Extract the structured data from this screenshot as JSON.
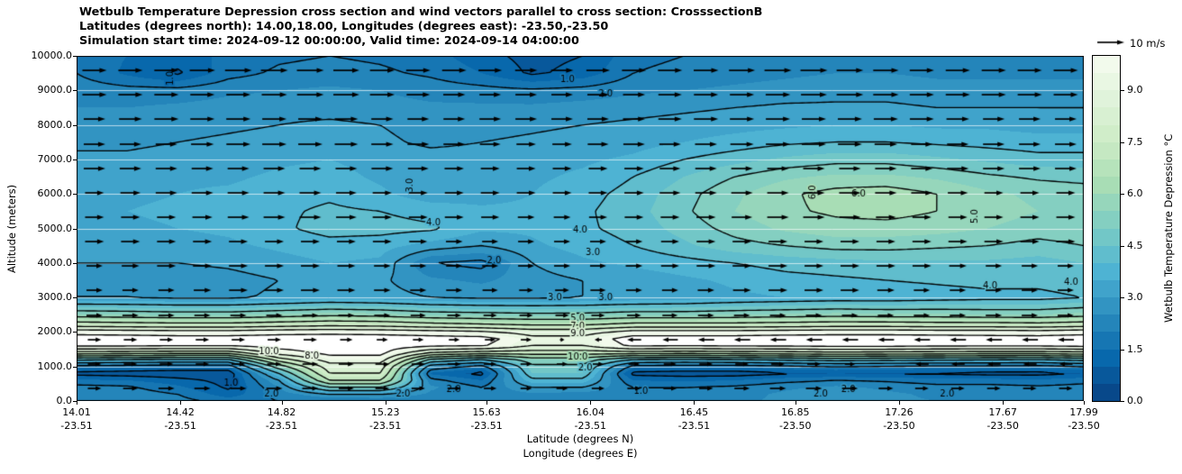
{
  "title": {
    "line1": "Wetbulb Temperature Depression cross section and wind vectors parallel to cross section: CrosssectionB",
    "line2": "Latitudes (degrees north): 14.00,18.00, Longitudes (degrees east): -23.50,-23.50",
    "line3": "Simulation start time: 2024-09-12 00:00:00, Valid time: 2024-09-14 04:00:00"
  },
  "y_axis": {
    "label": "Altitude (meters)",
    "ticks": [
      "0.0",
      "1000.0",
      "2000.0",
      "3000.0",
      "4000.0",
      "5000.0",
      "6000.0",
      "7000.0",
      "8000.0",
      "9000.0",
      "10000.0"
    ],
    "min": 0,
    "max": 10000
  },
  "x_axis": {
    "label_line1": "Latitude (degrees N)",
    "label_line2": "Longitude (degrees E)",
    "min": 14.01,
    "max": 17.99,
    "ticks": [
      {
        "lat": "14.01",
        "lon": "-23.51"
      },
      {
        "lat": "14.42",
        "lon": "-23.51"
      },
      {
        "lat": "14.82",
        "lon": "-23.51"
      },
      {
        "lat": "15.23",
        "lon": "-23.51"
      },
      {
        "lat": "15.63",
        "lon": "-23.51"
      },
      {
        "lat": "16.04",
        "lon": "-23.51"
      },
      {
        "lat": "16.45",
        "lon": "-23.51"
      },
      {
        "lat": "16.85",
        "lon": "-23.50"
      },
      {
        "lat": "17.26",
        "lon": "-23.50"
      },
      {
        "lat": "17.67",
        "lon": "-23.50"
      },
      {
        "lat": "17.99",
        "lon": "-23.50"
      }
    ]
  },
  "colorbar": {
    "label": "Wetbulb Temperature Depression °C",
    "ticks": [
      "0.0",
      "1.5",
      "3.0",
      "4.5",
      "6.0",
      "7.5",
      "9.0"
    ],
    "min": 0,
    "max": 10,
    "step": 0.5,
    "colors": [
      "#08488a",
      "#08589b",
      "#0868ac",
      "#1676b3",
      "#2485ba",
      "#3294c2",
      "#40a3cb",
      "#4eb3d3",
      "#60bdcd",
      "#72c7c7",
      "#84cfc1",
      "#96d6bb",
      "#a8ddb5",
      "#b6e3bb",
      "#c5e8c2",
      "#d0edc9",
      "#d8f0d2",
      "#e0f3db",
      "#e9f7e3",
      "#f2faec"
    ],
    "over_color": "#ffffff"
  },
  "quiver_key": {
    "label": "10 m/s",
    "speed_ms": 10
  },
  "chart_data": {
    "type": "heatmap",
    "title": "Wetbulb Temperature Depression cross section and wind vectors parallel to cross section: CrosssectionB",
    "xlabel": "Latitude (degrees N) / Longitude (degrees E)",
    "ylabel": "Altitude (meters)",
    "value_units": "degC wetbulb temperature depression",
    "x_lat": [
      14.01,
      14.21,
      14.41,
      14.61,
      14.81,
      15.01,
      15.21,
      15.41,
      15.61,
      15.81,
      16.01,
      16.21,
      16.41,
      16.61,
      16.81,
      17.01,
      17.21,
      17.41,
      17.61,
      17.81,
      17.99
    ],
    "y_alt": [
      0,
      200,
      400,
      600,
      800,
      1000,
      1200,
      1400,
      1600,
      1800,
      2000,
      2200,
      2500,
      3000,
      3500,
      4000,
      4500,
      5000,
      5500,
      6000,
      6500,
      7000,
      7500,
      8000,
      8500,
      9000,
      9500,
      10000
    ],
    "values": [
      [
        2.5,
        2.4,
        2.2,
        1.8,
        2.0,
        2.0,
        2.1,
        2.2,
        2.3,
        2.2,
        2.1,
        2.2,
        2.3,
        2.4,
        2.6,
        2.8,
        2.6,
        2.5,
        2.5,
        2.4,
        2.4
      ],
      [
        2.4,
        2.3,
        2.0,
        1.2,
        2.2,
        3.0,
        3.0,
        2.4,
        2.2,
        2.4,
        2.3,
        2.2,
        2.2,
        2.3,
        2.6,
        2.8,
        2.6,
        2.4,
        2.4,
        2.3,
        2.3
      ],
      [
        2.2,
        2.1,
        1.6,
        0.9,
        2.5,
        5.0,
        5.0,
        2.6,
        2.0,
        3.0,
        3.0,
        2.0,
        2.0,
        2.1,
        2.4,
        2.6,
        2.4,
        2.2,
        2.2,
        2.1,
        2.2
      ],
      [
        1.6,
        1.5,
        1.2,
        0.8,
        3.0,
        7.0,
        7.0,
        2.2,
        1.5,
        3.8,
        3.8,
        1.5,
        1.4,
        1.5,
        1.8,
        2.0,
        1.9,
        1.7,
        1.7,
        1.6,
        1.8
      ],
      [
        0.8,
        0.7,
        0.6,
        0.6,
        4.0,
        8.0,
        8.0,
        1.4,
        0.8,
        4.5,
        4.5,
        0.8,
        0.7,
        0.7,
        0.9,
        1.0,
        0.9,
        0.9,
        0.8,
        0.8,
        1.0
      ],
      [
        1.7,
        1.6,
        1.5,
        1.5,
        5.5,
        8.5,
        8.5,
        2.5,
        1.7,
        4.8,
        4.8,
        1.7,
        1.6,
        1.6,
        1.8,
        2.0,
        1.9,
        1.8,
        1.8,
        1.7,
        2.0
      ],
      [
        4.2,
        4.0,
        3.9,
        3.9,
        7.5,
        9.5,
        9.5,
        4.8,
        4.0,
        5.5,
        5.5,
        4.0,
        3.9,
        4.0,
        4.2,
        4.4,
        4.3,
        4.2,
        4.1,
        4.0,
        4.3
      ],
      [
        7.6,
        7.5,
        7.4,
        7.4,
        9.5,
        10.3,
        10.3,
        8.0,
        7.5,
        7.5,
        7.5,
        7.5,
        7.4,
        7.5,
        7.6,
        7.8,
        7.7,
        7.6,
        7.5,
        7.5,
        7.7
      ],
      [
        10.2,
        10.2,
        10.1,
        10.1,
        10.4,
        10.5,
        10.5,
        10.2,
        10.1,
        9.0,
        9.0,
        10.2,
        10.1,
        10.2,
        10.2,
        10.3,
        10.3,
        10.2,
        10.2,
        10.2,
        10.3
      ],
      [
        10.6,
        10.6,
        10.5,
        10.5,
        10.6,
        10.6,
        10.6,
        10.5,
        10.4,
        9.3,
        9.3,
        10.5,
        10.5,
        10.5,
        10.6,
        10.6,
        10.6,
        10.6,
        10.5,
        10.5,
        10.6
      ],
      [
        9.6,
        9.5,
        9.4,
        9.4,
        9.6,
        9.7,
        9.6,
        9.4,
        9.2,
        8.6,
        8.6,
        9.4,
        9.4,
        9.4,
        9.5,
        9.6,
        9.6,
        9.5,
        9.5,
        9.4,
        9.6
      ],
      [
        7.6,
        7.5,
        7.4,
        7.4,
        7.6,
        7.8,
        7.7,
        7.4,
        7.2,
        7.0,
        7.0,
        7.4,
        7.4,
        7.4,
        7.5,
        7.6,
        7.6,
        7.5,
        7.5,
        7.4,
        7.6
      ],
      [
        5.6,
        5.5,
        5.4,
        5.4,
        5.6,
        5.8,
        5.7,
        5.4,
        5.3,
        5.2,
        5.2,
        5.4,
        5.4,
        5.5,
        5.6,
        5.7,
        5.6,
        5.6,
        5.5,
        5.5,
        5.7
      ],
      [
        3.0,
        3.0,
        2.9,
        2.9,
        3.1,
        3.3,
        3.2,
        3.0,
        2.9,
        2.9,
        3.0,
        3.1,
        3.2,
        3.4,
        3.5,
        3.6,
        3.6,
        3.7,
        3.8,
        3.8,
        4.0
      ],
      [
        2.8,
        2.8,
        2.7,
        2.8,
        3.0,
        3.2,
        3.1,
        2.6,
        2.4,
        2.8,
        3.0,
        3.2,
        3.4,
        3.6,
        3.8,
        3.9,
        4.0,
        4.1,
        4.2,
        4.2,
        4.4
      ],
      [
        3.0,
        3.0,
        3.0,
        3.1,
        3.3,
        3.5,
        3.4,
        2.0,
        1.8,
        3.0,
        3.4,
        3.6,
        3.8,
        4.0,
        4.2,
        4.3,
        4.4,
        4.4,
        4.4,
        4.3,
        4.5
      ],
      [
        3.2,
        3.2,
        3.3,
        3.4,
        3.6,
        3.8,
        3.7,
        3.3,
        3.0,
        3.4,
        3.7,
        4.0,
        4.4,
        4.8,
        5.0,
        5.2,
        5.2,
        5.1,
        5.0,
        4.8,
        5.0
      ],
      [
        3.4,
        3.4,
        3.5,
        3.6,
        3.9,
        4.2,
        4.2,
        4.1,
        3.6,
        3.6,
        3.9,
        4.2,
        4.7,
        5.2,
        5.6,
        5.8,
        5.8,
        5.7,
        5.5,
        5.3,
        5.4
      ],
      [
        3.5,
        3.5,
        3.6,
        3.7,
        3.9,
        4.1,
        4.0,
        3.8,
        3.6,
        3.6,
        3.9,
        4.3,
        4.9,
        5.5,
        5.9,
        6.1,
        6.2,
        6.0,
        5.7,
        5.5,
        5.5
      ],
      [
        3.4,
        3.4,
        3.5,
        3.6,
        3.8,
        3.9,
        3.6,
        3.2,
        3.3,
        3.5,
        3.8,
        4.2,
        4.8,
        5.4,
        5.9,
        6.2,
        6.3,
        6.0,
        5.6,
        5.4,
        5.3
      ],
      [
        3.3,
        3.3,
        3.4,
        3.4,
        3.6,
        3.7,
        3.4,
        3.1,
        3.2,
        3.4,
        3.6,
        4.0,
        4.5,
        5.0,
        5.4,
        5.6,
        5.6,
        5.4,
        5.1,
        4.9,
        4.8
      ],
      [
        3.1,
        3.1,
        3.2,
        3.2,
        3.4,
        3.5,
        3.3,
        3.2,
        3.2,
        3.3,
        3.4,
        3.6,
        4.0,
        4.3,
        4.6,
        4.8,
        4.8,
        4.6,
        4.4,
        4.2,
        4.2
      ],
      [
        2.9,
        2.9,
        3.0,
        3.1,
        3.2,
        3.3,
        3.1,
        2.9,
        3.0,
        3.1,
        3.2,
        3.3,
        3.5,
        3.7,
        3.9,
        4.0,
        4.0,
        3.9,
        3.8,
        3.7,
        3.7
      ],
      [
        2.7,
        2.7,
        2.8,
        2.9,
        3.0,
        3.1,
        3.0,
        2.8,
        2.8,
        2.9,
        3.0,
        3.1,
        3.2,
        3.3,
        3.4,
        3.5,
        3.5,
        3.4,
        3.4,
        3.3,
        3.3
      ],
      [
        2.5,
        2.5,
        2.6,
        2.7,
        2.8,
        2.8,
        2.7,
        2.6,
        2.6,
        2.6,
        2.7,
        2.8,
        2.9,
        3.0,
        3.1,
        3.1,
        3.1,
        3.0,
        3.0,
        3.0,
        3.0
      ],
      [
        2.3,
        2.2,
        2.2,
        2.4,
        2.5,
        2.6,
        2.5,
        2.3,
        2.2,
        2.1,
        2.2,
        2.4,
        2.5,
        2.6,
        2.7,
        2.8,
        2.8,
        2.7,
        2.7,
        2.7,
        2.7
      ],
      [
        2.0,
        1.4,
        0.9,
        1.8,
        2.1,
        2.2,
        2.1,
        1.9,
        1.5,
        0.9,
        1.2,
        2.0,
        2.2,
        2.3,
        2.4,
        2.5,
        2.5,
        2.4,
        2.4,
        2.4,
        2.4
      ],
      [
        1.8,
        1.5,
        1.3,
        1.6,
        1.9,
        2.0,
        1.9,
        1.7,
        1.2,
        0.8,
        1.0,
        1.8,
        2.0,
        2.1,
        2.2,
        2.3,
        2.3,
        2.2,
        2.2,
        2.2,
        2.2
      ]
    ],
    "contour_levels": [
      1,
      2,
      3,
      4,
      5,
      6,
      7,
      8,
      9,
      10
    ],
    "gridline_alts": [
      1000,
      2000,
      3000,
      4000,
      5000,
      6000,
      7000,
      8000,
      9000
    ],
    "contour_labels": [
      {
        "lat": 15.95,
        "alt": 9300,
        "text": "1.0",
        "rot": 0
      },
      {
        "lat": 16.1,
        "alt": 8900,
        "text": "2.0",
        "rot": 0
      },
      {
        "lat": 14.38,
        "alt": 9350,
        "text": "1.0",
        "rot": 90
      },
      {
        "lat": 15.33,
        "alt": 6250,
        "text": "3.0",
        "rot": 90
      },
      {
        "lat": 15.42,
        "alt": 5150,
        "text": "4.0",
        "rot": 0
      },
      {
        "lat": 16.0,
        "alt": 4950,
        "text": "4.0",
        "rot": 0
      },
      {
        "lat": 15.66,
        "alt": 4050,
        "text": "2.0",
        "rot": 0
      },
      {
        "lat": 16.05,
        "alt": 4300,
        "text": "3.0",
        "rot": 0
      },
      {
        "lat": 15.9,
        "alt": 2980,
        "text": "3.0",
        "rot": 0
      },
      {
        "lat": 16.1,
        "alt": 2980,
        "text": "3.0",
        "rot": 0
      },
      {
        "lat": 16.92,
        "alt": 6050,
        "text": "6.0",
        "rot": 90
      },
      {
        "lat": 17.1,
        "alt": 6000,
        "text": "6.0",
        "rot": 0
      },
      {
        "lat": 17.56,
        "alt": 5350,
        "text": "5.0",
        "rot": 90
      },
      {
        "lat": 17.62,
        "alt": 3320,
        "text": "4.0",
        "rot": 0
      },
      {
        "lat": 17.94,
        "alt": 3430,
        "text": "4.0",
        "rot": 0
      },
      {
        "lat": 14.77,
        "alt": 1430,
        "text": "10.0",
        "rot": 0
      },
      {
        "lat": 14.94,
        "alt": 1300,
        "text": "8.0",
        "rot": 0
      },
      {
        "lat": 15.99,
        "alt": 2400,
        "text": "5.0",
        "rot": 0
      },
      {
        "lat": 15.99,
        "alt": 2150,
        "text": "7.0",
        "rot": 0
      },
      {
        "lat": 15.99,
        "alt": 1950,
        "text": "9.0",
        "rot": 0
      },
      {
        "lat": 15.99,
        "alt": 1270,
        "text": "10.0",
        "rot": 0
      },
      {
        "lat": 16.02,
        "alt": 950,
        "text": "2.0",
        "rot": 0
      },
      {
        "lat": 14.62,
        "alt": 500,
        "text": "1.0",
        "rot": 0
      },
      {
        "lat": 14.78,
        "alt": 210,
        "text": "2.0",
        "rot": 0
      },
      {
        "lat": 15.3,
        "alt": 210,
        "text": "2.0",
        "rot": 0
      },
      {
        "lat": 15.5,
        "alt": 340,
        "text": "2.0",
        "rot": 0
      },
      {
        "lat": 16.24,
        "alt": 270,
        "text": "1.0",
        "rot": 0
      },
      {
        "lat": 16.95,
        "alt": 210,
        "text": "2.0",
        "rot": 0
      },
      {
        "lat": 17.06,
        "alt": 340,
        "text": "2.0",
        "rot": 0
      },
      {
        "lat": 17.45,
        "alt": 210,
        "text": "2.0",
        "rot": 0
      }
    ],
    "wind": {
      "reference_ms": 10,
      "row_alts": [
        9580,
        8875,
        8170,
        7440,
        6735,
        6030,
        5325,
        4620,
        3915,
        3210,
        2480,
        1775,
        1070,
        365
      ],
      "u": [
        [
          9,
          9,
          10,
          10,
          9,
          9,
          8,
          9,
          9,
          10,
          10,
          9,
          9,
          9
        ],
        [
          9,
          9,
          9,
          10,
          9,
          8,
          8,
          8,
          9,
          9,
          10,
          9,
          9,
          9
        ],
        [
          8,
          9,
          9,
          9,
          8,
          8,
          8,
          8,
          9,
          9,
          9,
          9,
          8,
          8
        ],
        [
          8,
          8,
          9,
          9,
          8,
          8,
          7,
          8,
          8,
          9,
          9,
          8,
          8,
          8
        ],
        [
          8,
          8,
          8,
          8,
          8,
          7,
          7,
          7,
          8,
          8,
          8,
          8,
          8,
          8
        ],
        [
          7,
          8,
          8,
          8,
          7,
          7,
          7,
          7,
          8,
          8,
          8,
          8,
          7,
          7
        ],
        [
          7,
          7,
          8,
          8,
          7,
          7,
          6,
          7,
          7,
          8,
          8,
          7,
          7,
          7
        ],
        [
          7,
          7,
          7,
          7,
          7,
          6,
          6,
          6,
          7,
          7,
          7,
          7,
          7,
          7
        ],
        [
          6,
          7,
          7,
          7,
          6,
          6,
          6,
          6,
          7,
          7,
          7,
          7,
          6,
          6
        ],
        [
          6,
          6,
          7,
          7,
          6,
          6,
          5,
          6,
          6,
          7,
          7,
          6,
          6,
          6
        ],
        [
          6,
          6,
          6,
          6,
          6,
          5,
          5,
          5,
          6,
          6,
          6,
          6,
          6,
          6
        ],
        [
          5,
          5,
          5,
          5,
          4,
          4,
          4,
          -5,
          -6,
          -6,
          -6,
          -6,
          -6,
          -6
        ],
        [
          5,
          5,
          5,
          6,
          5,
          5,
          4,
          4,
          5,
          5,
          5,
          -5,
          -5,
          -5
        ],
        [
          5,
          6,
          6,
          6,
          5,
          5,
          4,
          5,
          5,
          6,
          6,
          5,
          5,
          5
        ]
      ]
    }
  }
}
